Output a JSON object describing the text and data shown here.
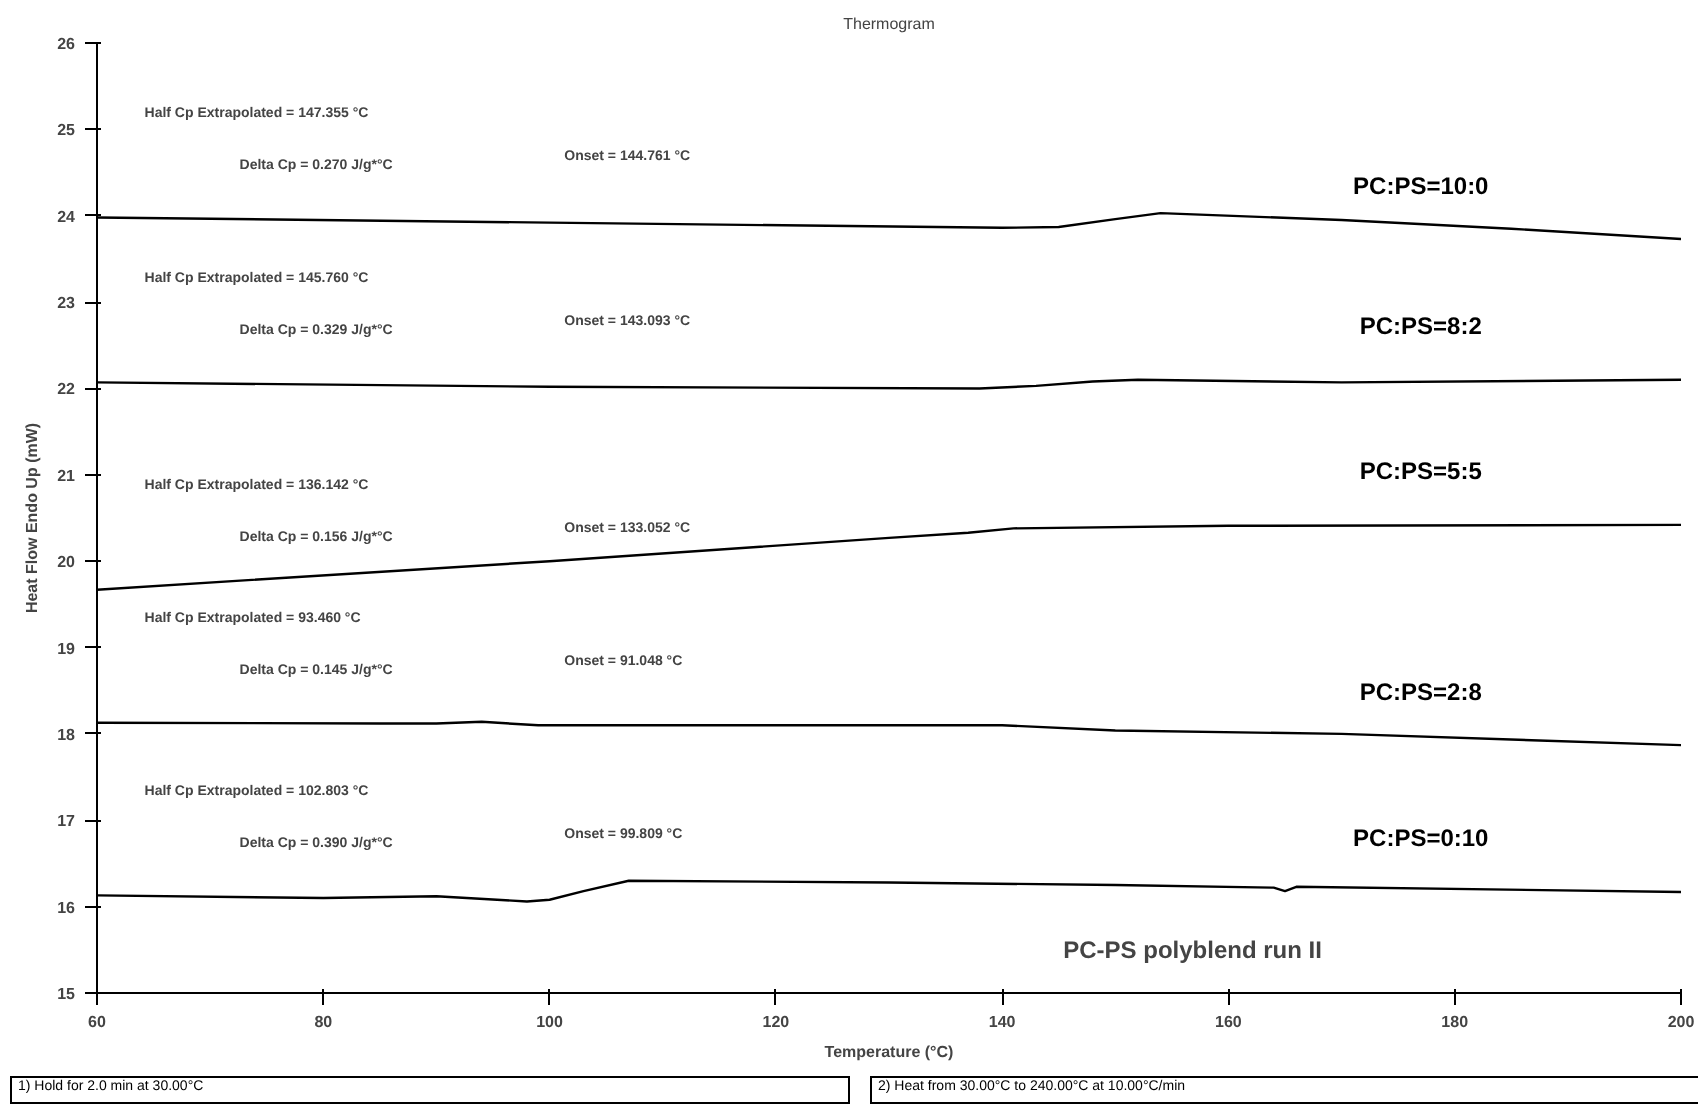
{
  "chart_data": {
    "type": "line",
    "title": "Thermogram",
    "xlabel": "Temperature (°C)",
    "ylabel": "Heat Flow Endo Up (mW)",
    "xlim": [
      60,
      200
    ],
    "ylim": [
      15,
      26
    ],
    "xticks": [
      60,
      80,
      100,
      120,
      140,
      160,
      180,
      200
    ],
    "yticks": [
      15,
      16,
      17,
      18,
      19,
      20,
      21,
      22,
      23,
      24,
      25,
      26
    ],
    "grid": false,
    "marker": "none",
    "line_style": "solid",
    "series": [
      {
        "name": "PC:PS=10:0",
        "color": "#000000",
        "x": [
          60,
          100,
          140,
          145,
          150,
          154,
          170,
          185,
          200
        ],
        "values": [
          23.98,
          23.92,
          23.86,
          23.87,
          23.96,
          24.03,
          23.95,
          23.85,
          23.73
        ]
      },
      {
        "name": "PC:PS=8:2",
        "color": "#000000",
        "x": [
          60,
          100,
          138,
          143,
          148,
          152,
          170,
          200
        ],
        "values": [
          22.07,
          22.02,
          22.0,
          22.03,
          22.08,
          22.1,
          22.07,
          22.1
        ]
      },
      {
        "name": "PC:PS=5:5",
        "color": "#000000",
        "x": [
          60,
          100,
          130,
          137,
          141,
          160,
          200
        ],
        "values": [
          19.67,
          20.0,
          20.27,
          20.33,
          20.38,
          20.41,
          20.42
        ]
      },
      {
        "name": "PC:PS=2:8",
        "color": "#000000",
        "x": [
          60,
          85,
          90,
          94,
          99,
          120,
          140,
          150,
          170,
          200
        ],
        "values": [
          18.13,
          18.12,
          18.12,
          18.14,
          18.1,
          18.1,
          18.1,
          18.04,
          18.0,
          17.87
        ]
      },
      {
        "name": "PC:PS=0:10",
        "color": "#000000",
        "x": [
          60,
          80,
          90,
          98,
          100,
          103,
          107,
          130,
          150,
          164,
          165,
          166,
          200
        ],
        "values": [
          16.13,
          16.1,
          16.12,
          16.06,
          16.08,
          16.18,
          16.3,
          16.28,
          16.25,
          16.22,
          16.18,
          16.23,
          16.17
        ]
      }
    ],
    "annotations": [
      "Half Cp Extrapolated = 147.355 °C",
      "Delta Cp = 0.270 J/g*°C",
      "Onset = 144.761 °C",
      "Half Cp Extrapolated = 145.760 °C",
      "Delta Cp = 0.329 J/g*°C",
      "Onset = 143.093 °C",
      "Half Cp Extrapolated = 136.142 °C",
      "Delta Cp = 0.156 J/g*°C",
      "Onset = 133.052 °C",
      "Half Cp Extrapolated = 93.460 °C",
      "Delta Cp = 0.145 J/g*°C",
      "Onset = 91.048 °C",
      "Half Cp Extrapolated = 102.803 °C",
      "Delta Cp = 0.390 J/g*°C",
      "Onset = 99.809 °C",
      "PC-PS polyblend run II",
      "1) Hold for 2.0 min at 30.00°C",
      "2) Heat from 30.00°C to 240.00°C at 10.00°C/min"
    ]
  }
}
